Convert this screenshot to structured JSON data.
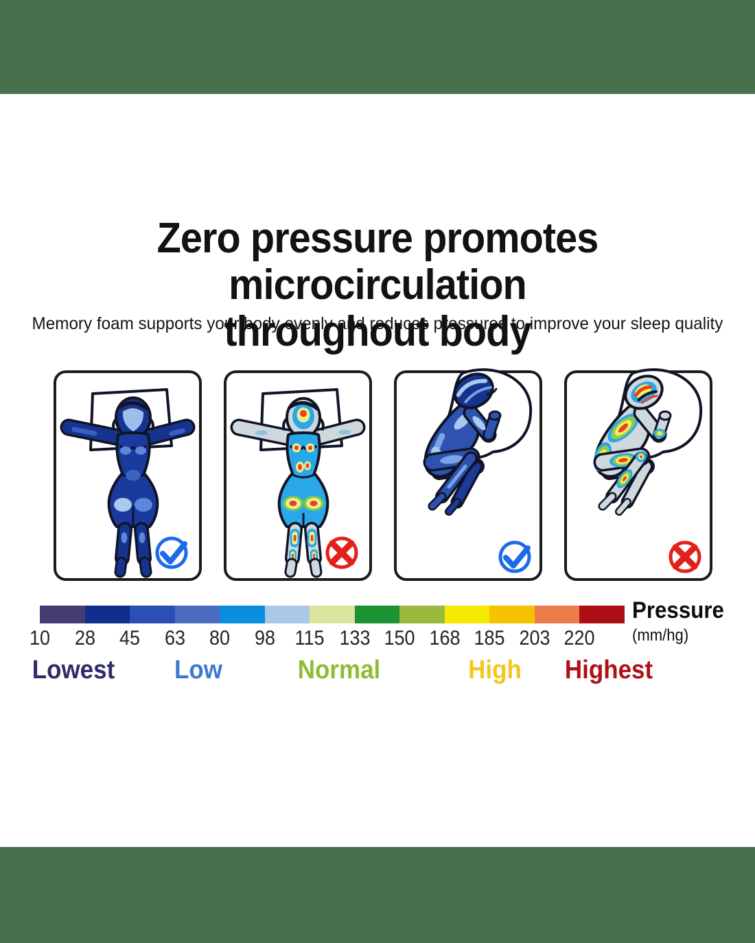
{
  "page": {
    "band_color": "#47714d",
    "background": "#ffffff"
  },
  "header": {
    "title_line1": "Zero pressure promotes microcirculation",
    "title_line2": "throughout body",
    "subtitle": "Memory foam supports your body evenly and reduces pressures to improve your sleep quality"
  },
  "panels": [
    {
      "id": "back-sleeper-even",
      "verdict": "good",
      "icon": "check-icon"
    },
    {
      "id": "back-sleeper-points",
      "verdict": "bad",
      "icon": "cross-icon"
    },
    {
      "id": "side-sleeper-even",
      "verdict": "good",
      "icon": "check-icon"
    },
    {
      "id": "side-sleeper-points",
      "verdict": "bad",
      "icon": "cross-icon"
    }
  ],
  "icons": {
    "check_color": "#1f6ae8",
    "cross_color": "#e3201b"
  },
  "scale": {
    "title": "Pressure",
    "unit": "(mm/hg)",
    "values": [
      "10",
      "28",
      "45",
      "63",
      "80",
      "98",
      "115",
      "133",
      "150",
      "168",
      "185",
      "203",
      "220"
    ],
    "segment_colors": [
      "#463c72",
      "#0e2f8c",
      "#2b50b5",
      "#4a6cbe",
      "#0a8ede",
      "#abc8e6",
      "#dbe49e",
      "#1b9333",
      "#9ab83b",
      "#f6ea00",
      "#f5c200",
      "#ed7c4d",
      "#ab0f14"
    ],
    "levels": [
      {
        "label": "Lowest",
        "color": "#2e2c6a"
      },
      {
        "label": "Low",
        "color": "#3d79d2"
      },
      {
        "label": "Normal",
        "color": "#8ebc35"
      },
      {
        "label": "High",
        "color": "#f5c71c"
      },
      {
        "label": "Highest",
        "color": "#ae1117"
      }
    ]
  }
}
